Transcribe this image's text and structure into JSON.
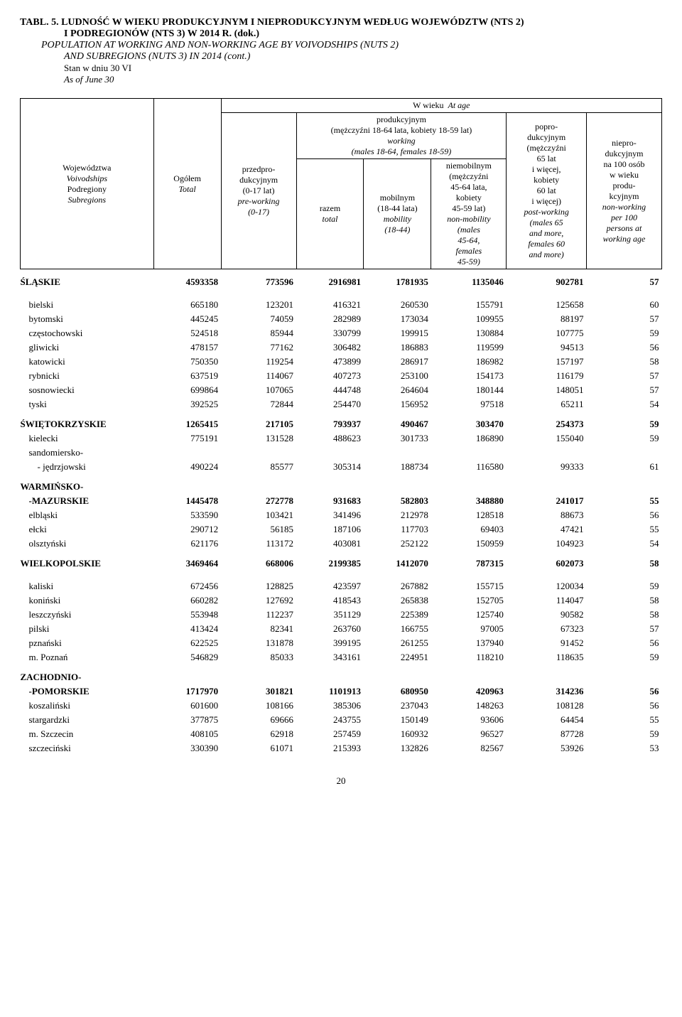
{
  "title": {
    "line1": "TABL. 5.  LUDNOŚĆ W WIEKU PRODUKCYJNYM I NIEPRODUKCYJNYM WEDŁUG WOJEWÓDZTW (NTS 2)",
    "line2": "I PODREGIONÓW (NTS 3) W 2014 R. (dok.)",
    "line3": "POPULATION AT WORKING AND NON-WORKING AGE BY VOIVODSHIPS (NUTS 2)",
    "line4": "AND SUBREGIONS (NUTS 3) IN 2014 (cont.)",
    "note1": "Stan w dniu 30 VI",
    "note2": "As of June 30"
  },
  "header": {
    "col0": {
      "pl": "Województwa",
      "en1": "Voivodships",
      "pl2": "Podregiony",
      "en2": "Subregions"
    },
    "col1": {
      "pl": "Ogółem",
      "en": "Total"
    },
    "col2": {
      "pl1": "przedpro-",
      "pl2": "dukcyjnym",
      "pl3": "(0-17 lat)",
      "en1": "pre-working",
      "en2": "(0-17)"
    },
    "atage": {
      "pl": "W wieku",
      "en": "At age"
    },
    "prod": {
      "pl": "produkcyjnym",
      "pldet": "(mężczyźni 18-64 lata, kobiety 18-59 lat)",
      "en1": "working",
      "endet": "(males 18-64, females 18-59)"
    },
    "razem": {
      "pl": "razem",
      "en": "total"
    },
    "mob": {
      "pl1": "mobilnym",
      "pl2": "(18-44 lata)",
      "en1": "mobility",
      "en2": "(18-44)"
    },
    "niemob": {
      "pl1": "niemobilnym",
      "pl2": "(mężczyźni",
      "pl3": "45-64 lata,",
      "pl4": "kobiety",
      "pl5": "45-59 lat)",
      "en1": "non-mobility",
      "en2": "(males",
      "en3": "45-64,",
      "en4": "females",
      "en5": "45-59)"
    },
    "popro": {
      "pl1": "popro-",
      "pl2": "dukcyjnym",
      "pl3": "(mężczyźni",
      "pl4": "65 lat",
      "pl5": "i więcej,",
      "pl6": "kobiety",
      "pl7": "60 lat",
      "pl8": "i więcej)",
      "en1": "post-working",
      "en2": "(males 65",
      "en3": "and more,",
      "en4": "females 60",
      "en5": "and more)"
    },
    "niepro": {
      "pl1": "niepro-",
      "pl2": "dukcyjnym",
      "pl3": "na 100 osób",
      "pl4": "w wieku",
      "pl5": "produ-",
      "pl6": "kcyjnym",
      "en1": "non-working",
      "en2": "per 100",
      "en3": "persons at",
      "en4": "working age"
    }
  },
  "rows": [
    {
      "label": "ŚLĄSKIE",
      "bold": true,
      "section": true,
      "vals": [
        "4593358",
        "773596",
        "2916981",
        "1781935",
        "1135046",
        "902781",
        "57"
      ]
    },
    {
      "label": "bielski",
      "indent": 1,
      "spacerBefore": true,
      "vals": [
        "665180",
        "123201",
        "416321",
        "260530",
        "155791",
        "125658",
        "60"
      ]
    },
    {
      "label": "bytomski",
      "indent": 1,
      "vals": [
        "445245",
        "74059",
        "282989",
        "173034",
        "109955",
        "88197",
        "57"
      ]
    },
    {
      "label": "częstochowski",
      "indent": 1,
      "vals": [
        "524518",
        "85944",
        "330799",
        "199915",
        "130884",
        "107775",
        "59"
      ]
    },
    {
      "label": "gliwicki",
      "indent": 1,
      "vals": [
        "478157",
        "77162",
        "306482",
        "186883",
        "119599",
        "94513",
        "56"
      ]
    },
    {
      "label": "katowicki",
      "indent": 1,
      "vals": [
        "750350",
        "119254",
        "473899",
        "286917",
        "186982",
        "157197",
        "58"
      ]
    },
    {
      "label": "rybnicki",
      "indent": 1,
      "vals": [
        "637519",
        "114067",
        "407273",
        "253100",
        "154173",
        "116179",
        "57"
      ]
    },
    {
      "label": "sosnowiecki",
      "indent": 1,
      "vals": [
        "699864",
        "107065",
        "444748",
        "264604",
        "180144",
        "148051",
        "57"
      ]
    },
    {
      "label": "tyski",
      "indent": 1,
      "vals": [
        "392525",
        "72844",
        "254470",
        "156952",
        "97518",
        "65211",
        "54"
      ]
    },
    {
      "label": "ŚWIĘTOKRZYSKIE",
      "bold": true,
      "section": true,
      "vals": [
        "1265415",
        "217105",
        "793937",
        "490467",
        "303470",
        "254373",
        "59"
      ]
    },
    {
      "label": "kielecki",
      "indent": 1,
      "vals": [
        "775191",
        "131528",
        "488623",
        "301733",
        "186890",
        "155040",
        "59"
      ]
    },
    {
      "label": "sandomiersko-",
      "indent": 1,
      "vals": [
        "",
        "",
        "",
        "",
        "",
        "",
        ""
      ]
    },
    {
      "label": "- jędrzjowski",
      "indent": 2,
      "vals": [
        "490224",
        "85577",
        "305314",
        "188734",
        "116580",
        "99333",
        "61"
      ]
    },
    {
      "label": "WARMIŃSKO-",
      "bold": true,
      "section": true,
      "vals": [
        "",
        "",
        "",
        "",
        "",
        "",
        ""
      ]
    },
    {
      "label": "-MAZURSKIE",
      "bold": true,
      "indent": 1,
      "vals": [
        "1445478",
        "272778",
        "931683",
        "582803",
        "348880",
        "241017",
        "55"
      ]
    },
    {
      "label": "elbląski",
      "indent": 1,
      "vals": [
        "533590",
        "103421",
        "341496",
        "212978",
        "128518",
        "88673",
        "56"
      ]
    },
    {
      "label": "ełcki",
      "indent": 1,
      "vals": [
        "290712",
        "56185",
        "187106",
        "117703",
        "69403",
        "47421",
        "55"
      ]
    },
    {
      "label": "olsztyński",
      "indent": 1,
      "vals": [
        "621176",
        "113172",
        "403081",
        "252122",
        "150959",
        "104923",
        "54"
      ]
    },
    {
      "label": "WIELKOPOLSKIE",
      "bold": true,
      "section": true,
      "vals": [
        "3469464",
        "668006",
        "2199385",
        "1412070",
        "787315",
        "602073",
        "58"
      ]
    },
    {
      "label": "kaliski",
      "indent": 1,
      "spacerBefore": true,
      "vals": [
        "672456",
        "128825",
        "423597",
        "267882",
        "155715",
        "120034",
        "59"
      ]
    },
    {
      "label": "koniński",
      "indent": 1,
      "vals": [
        "660282",
        "127692",
        "418543",
        "265838",
        "152705",
        "114047",
        "58"
      ]
    },
    {
      "label": "leszczyński",
      "indent": 1,
      "vals": [
        "553948",
        "112237",
        "351129",
        "225389",
        "125740",
        "90582",
        "58"
      ]
    },
    {
      "label": "pilski",
      "indent": 1,
      "vals": [
        "413424",
        "82341",
        "263760",
        "166755",
        "97005",
        "67323",
        "57"
      ]
    },
    {
      "label": "pznański",
      "indent": 1,
      "vals": [
        "622525",
        "131878",
        "399195",
        "261255",
        "137940",
        "91452",
        "56"
      ]
    },
    {
      "label": "m. Poznań",
      "indent": 1,
      "vals": [
        "546829",
        "85033",
        "343161",
        "224951",
        "118210",
        "118635",
        "59"
      ]
    },
    {
      "label": "ZACHODNIO-",
      "bold": true,
      "section": true,
      "vals": [
        "",
        "",
        "",
        "",
        "",
        "",
        ""
      ]
    },
    {
      "label": "-POMORSKIE",
      "bold": true,
      "indent": 1,
      "vals": [
        "1717970",
        "301821",
        "1101913",
        "680950",
        "420963",
        "314236",
        "56"
      ]
    },
    {
      "label": "koszaliński",
      "indent": 1,
      "vals": [
        "601600",
        "108166",
        "385306",
        "237043",
        "148263",
        "108128",
        "56"
      ]
    },
    {
      "label": "stargardzki",
      "indent": 1,
      "vals": [
        "377875",
        "69666",
        "243755",
        "150149",
        "93606",
        "64454",
        "55"
      ]
    },
    {
      "label": "m. Szczecin",
      "indent": 1,
      "vals": [
        "408105",
        "62918",
        "257459",
        "160932",
        "96527",
        "87728",
        "59"
      ]
    },
    {
      "label": "szczeciński",
      "indent": 1,
      "vals": [
        "330390",
        "61071",
        "215393",
        "132826",
        "82567",
        "53926",
        "53"
      ]
    }
  ],
  "page": "20"
}
